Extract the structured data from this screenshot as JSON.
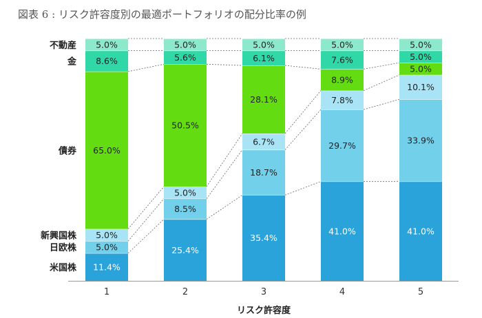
{
  "chart_data": {
    "type": "bar",
    "stacked": true,
    "title": "図表 6 : リスク許容度別の最適ポートフォリオの配分比率の例",
    "xlabel": "リスク許容度",
    "ylabel": "",
    "ylim": [
      0,
      100
    ],
    "categories": [
      "1",
      "2",
      "3",
      "4",
      "5"
    ],
    "series": [
      {
        "name": "米国株",
        "color": "#2aa3db",
        "label_color": "#ffffff",
        "values": [
          11.4,
          25.4,
          35.4,
          41.0,
          41.0
        ],
        "labels": [
          "11.4%",
          "25.4%",
          "35.4%",
          "41.0%",
          "41.0%"
        ]
      },
      {
        "name": "日欧株",
        "color": "#72d0ea",
        "label_color": "#222222",
        "values": [
          5.0,
          8.5,
          18.7,
          29.7,
          33.9
        ],
        "labels": [
          "5.0%",
          "8.5%",
          "18.7%",
          "29.7%",
          "33.9%"
        ]
      },
      {
        "name": "新興国株",
        "color": "#a8e4f5",
        "label_color": "#222222",
        "values": [
          5.0,
          5.0,
          6.7,
          7.8,
          10.1
        ],
        "labels": [
          "5.0%",
          "5.0%",
          "6.7%",
          "7.8%",
          "10.1%"
        ]
      },
      {
        "name": "債券",
        "color": "#63dd11",
        "label_color": "#222222",
        "values": [
          65.0,
          50.5,
          28.1,
          8.9,
          5.0
        ],
        "labels": [
          "65.0%",
          "50.5%",
          "28.1%",
          "8.9%",
          "5.0%"
        ]
      },
      {
        "name": "金",
        "color": "#2fd8a6",
        "label_color": "#222222",
        "values": [
          8.6,
          5.6,
          6.1,
          7.6,
          5.0
        ],
        "labels": [
          "8.6%",
          "5.6%",
          "6.1%",
          "7.6%",
          "5.0%"
        ]
      },
      {
        "name": "不動産",
        "color": "#8de9cc",
        "label_color": "#222222",
        "values": [
          5.0,
          5.0,
          5.0,
          5.0,
          5.0
        ],
        "labels": [
          "5.0%",
          "5.0%",
          "5.0%",
          "5.0%",
          "5.0%"
        ]
      }
    ],
    "connector_lines": true,
    "grid": false,
    "legend": "left"
  }
}
